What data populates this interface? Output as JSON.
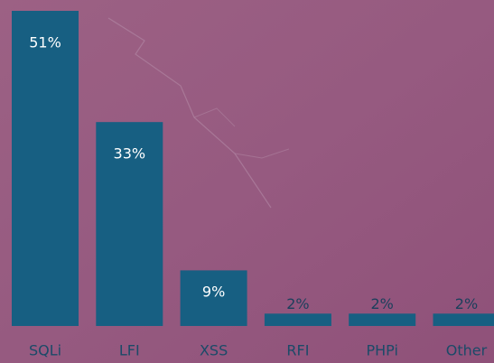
{
  "chart_data": {
    "type": "bar",
    "categories": [
      "SQLi",
      "LFI",
      "XSS",
      "RFI",
      "PHPi",
      "Other"
    ],
    "values": [
      51,
      33,
      9,
      2,
      2,
      2
    ],
    "value_labels": [
      "51%",
      "33%",
      "9%",
      "2%",
      "2%",
      "2%"
    ],
    "color": "#175f82"
  }
}
